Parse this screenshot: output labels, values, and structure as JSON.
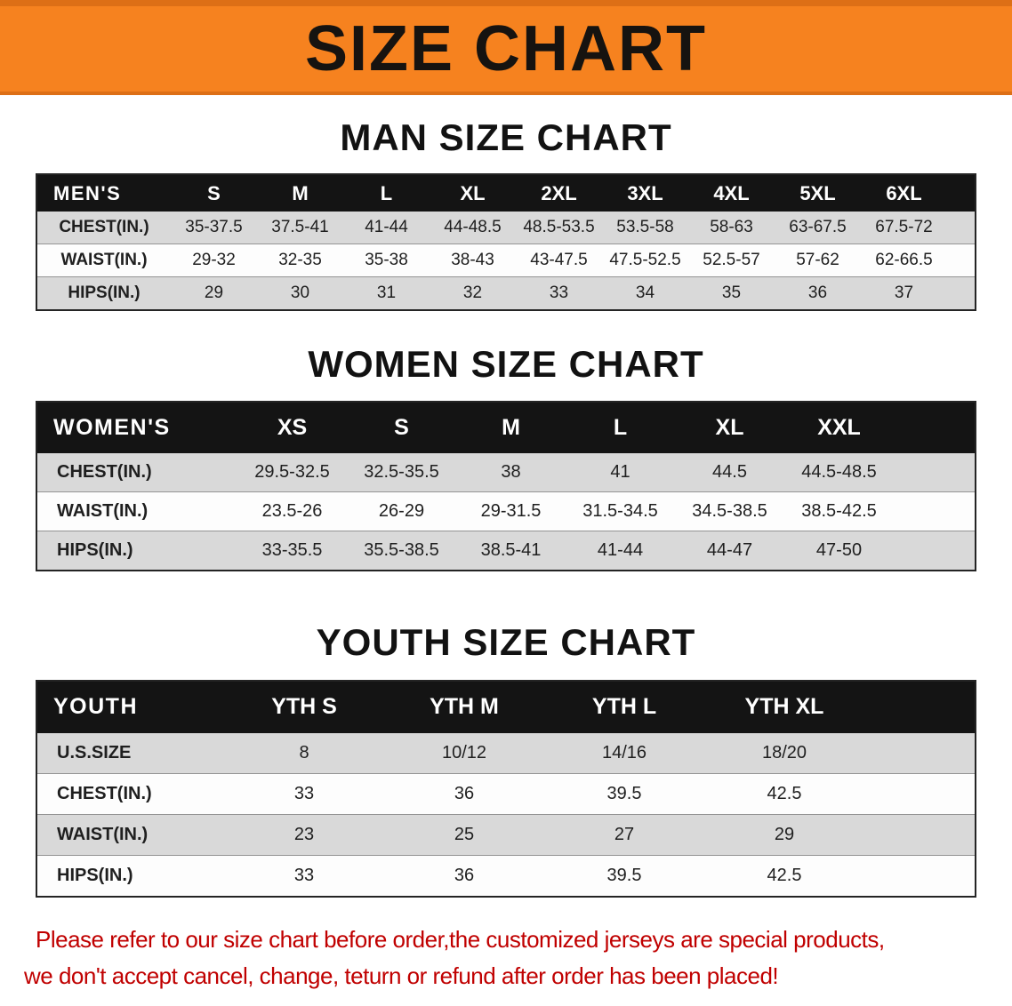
{
  "banner": {
    "title": "SIZE CHART"
  },
  "sections": [
    {
      "heading": "MAN SIZE CHART",
      "table": {
        "header": [
          "MEN'S",
          "S",
          "M",
          "L",
          "XL",
          "2XL",
          "3XL",
          "4XL",
          "5XL",
          "6XL"
        ],
        "rows": [
          [
            "CHEST(IN.)",
            "35-37.5",
            "37.5-41",
            "41-44",
            "44-48.5",
            "48.5-53.5",
            "53.5-58",
            "58-63",
            "63-67.5",
            "67.5-72"
          ],
          [
            "WAIST(IN.)",
            "29-32",
            "32-35",
            "35-38",
            "38-43",
            "43-47.5",
            "47.5-52.5",
            "52.5-57",
            "57-62",
            "62-66.5"
          ],
          [
            "HIPS(IN.)",
            "29",
            "30",
            "31",
            "32",
            "33",
            "34",
            "35",
            "36",
            "37"
          ]
        ]
      }
    },
    {
      "heading": "WOMEN SIZE CHART",
      "table": {
        "header": [
          "WOMEN'S",
          "XS",
          "S",
          "M",
          "L",
          "XL",
          "XXL"
        ],
        "rows": [
          [
            "CHEST(IN.)",
            "29.5-32.5",
            "32.5-35.5",
            "38",
            "41",
            "44.5",
            "44.5-48.5"
          ],
          [
            "WAIST(IN.)",
            "23.5-26",
            "26-29",
            "29-31.5",
            "31.5-34.5",
            "34.5-38.5",
            "38.5-42.5"
          ],
          [
            "HIPS(IN.)",
            "33-35.5",
            "35.5-38.5",
            "38.5-41",
            "41-44",
            "44-47",
            "47-50"
          ]
        ]
      }
    },
    {
      "heading": "YOUTH SIZE CHART",
      "table": {
        "header": [
          "YOUTH",
          "YTH S",
          "YTH M",
          "YTH L",
          "YTH XL"
        ],
        "rows": [
          [
            "U.S.SIZE",
            "8",
            "10/12",
            "14/16",
            "18/20"
          ],
          [
            "CHEST(IN.)",
            "33",
            "36",
            "39.5",
            "42.5"
          ],
          [
            "WAIST(IN.)",
            "23",
            "25",
            "27",
            "29"
          ],
          [
            "HIPS(IN.)",
            "33",
            "36",
            "39.5",
            "42.5"
          ]
        ]
      }
    }
  ],
  "footer": {
    "line1": "Please refer to our size chart before order,the customized jerseys are special products,",
    "line2": "we don't accept cancel, change, teturn or refund after order has been placed!"
  },
  "colors": {
    "banner_orange": "#f6821f",
    "header_black": "#141414",
    "row_gray": "#d9d9d9",
    "notice_red": "#c00000"
  }
}
